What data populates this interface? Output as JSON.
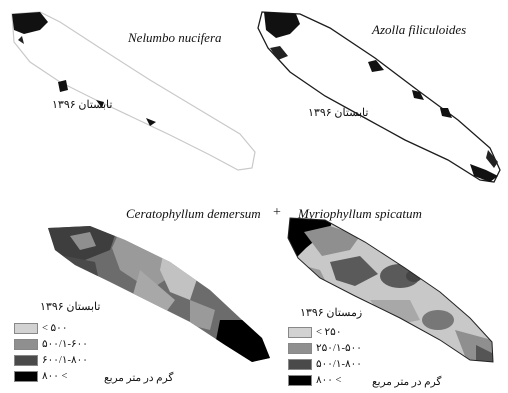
{
  "panels": [
    {
      "species": "Nelumbo nucifera",
      "season": "تابستان ۱۳۹۶"
    },
    {
      "species": "Azolla filiculoides",
      "season": "تابستان ۱۳۹۶"
    },
    {
      "season": "تابستان ۱۳۹۶",
      "legend": [
        "< ۵۰۰",
        "۵۰۰/۱-۶۰۰",
        "۶۰۰/۱-۸۰۰",
        "۸۰۰ <"
      ],
      "legend_colors": [
        "#d2d2d2",
        "#8f8f8f",
        "#4a4a4a",
        "#000000"
      ],
      "unit": "گرم در متر مربع"
    },
    {
      "season": "زمستان ۱۳۹۶",
      "legend": [
        "< ۲۵۰",
        "۲۵۰/۱-۵۰۰",
        "۵۰۰/۱-۸۰۰",
        "۸۰۰ <"
      ],
      "legend_colors": [
        "#d2d2d2",
        "#8f8f8f",
        "#4a4a4a",
        "#000000"
      ],
      "unit": "گرم در متر مربع"
    }
  ],
  "combined_title_left": "Ceratophyllum demersum",
  "combined_title_plus": "+",
  "combined_title_right": "Myriophyllum spicatum"
}
